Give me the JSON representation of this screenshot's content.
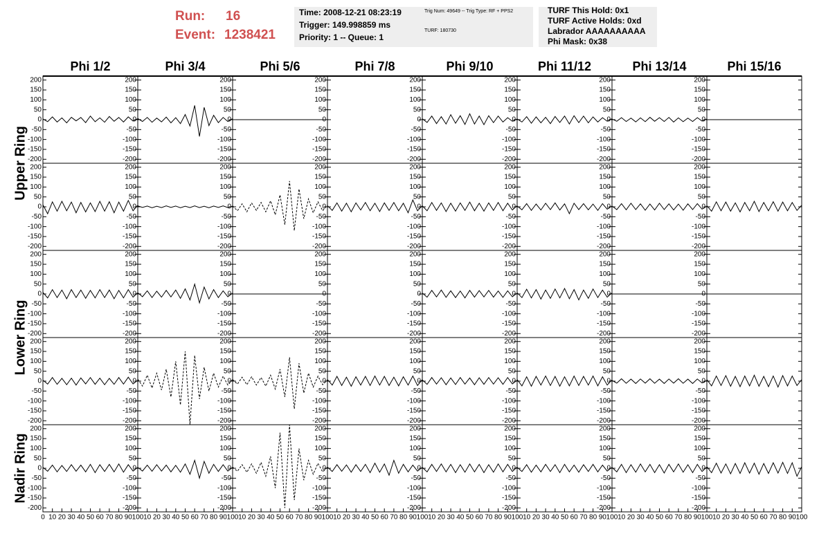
{
  "header": {
    "run_label": "Run:",
    "run": "16",
    "event_label": "Event:",
    "event": "1238421",
    "info_box": [
      "Time: 2008-12-21 08:23:19",
      "Trigger: 149.998859 ms",
      "Priority: 1 -- Queue: 1"
    ],
    "trig_box": [
      "Trig Num: 49649 -- Trig Type: RF + PPS2",
      "TURF: 180730"
    ],
    "turf_box": [
      "TURF This Hold: 0x1",
      "TURF Active Holds: 0xd",
      "Labrador AAAAAAAAAA",
      "Phi Mask: 0x38"
    ]
  },
  "chart_data": {
    "type": "line",
    "color": "#000000",
    "columns": [
      "Phi 1/2",
      "Phi 3/4",
      "Phi 5/6",
      "Phi 7/8",
      "Phi 9/10",
      "Phi 11/12",
      "Phi 13/14",
      "Phi 15/16"
    ],
    "ring_labels": [
      "Upper Ring",
      "Lower Ring",
      "Nadir Ring"
    ],
    "ylim": [
      -220,
      220
    ],
    "yticks": [
      -200,
      -150,
      -100,
      -50,
      0,
      50,
      100,
      150,
      200
    ],
    "xlim": [
      0,
      100
    ],
    "xticks": [
      0,
      10,
      20,
      30,
      40,
      50,
      60,
      70,
      80,
      90,
      100
    ],
    "x": [
      0,
      5,
      10,
      15,
      20,
      25,
      30,
      35,
      40,
      45,
      50,
      55,
      60,
      65,
      70,
      75,
      80,
      85,
      90,
      95,
      100
    ],
    "rows": [
      [
        {
          "values": [
            4,
            -10,
            14,
            -12,
            9,
            -16,
            12,
            -6,
            11,
            -15,
            18,
            -10,
            9,
            -13,
            16,
            -8,
            11,
            -12,
            14,
            -7,
            5
          ]
        },
        {
          "values": [
            6,
            -9,
            11,
            -13,
            8,
            -11,
            13,
            -16,
            10,
            -20,
            26,
            -32,
            72,
            -85,
            62,
            -30,
            22,
            -15,
            11,
            -9,
            5
          ]
        },
        {
          "values": [
            0,
            0,
            0,
            0,
            0,
            0,
            0,
            0,
            0,
            0,
            0,
            0,
            0,
            0,
            0,
            0,
            0,
            0,
            0,
            0,
            0
          ]
        },
        {
          "values": [
            null,
            null,
            null,
            null,
            null,
            null,
            null,
            null,
            null,
            null,
            null,
            null,
            null,
            null,
            null,
            null,
            null,
            null,
            null,
            null,
            null
          ]
        },
        {
          "values": [
            5,
            -14,
            18,
            -20,
            15,
            -22,
            25,
            -18,
            20,
            -24,
            30,
            -22,
            18,
            -25,
            20,
            -15,
            18,
            -12,
            10,
            -8,
            4
          ]
        },
        {
          "values": [
            4,
            -12,
            15,
            -18,
            14,
            -16,
            12,
            -20,
            16,
            -14,
            18,
            -22,
            20,
            -15,
            18,
            -16,
            14,
            -12,
            10,
            -8,
            5
          ]
        },
        {
          "values": [
            3,
            -8,
            10,
            -9,
            8,
            -11,
            9,
            -10,
            12,
            -8,
            10,
            -9,
            11,
            -12,
            9,
            -10,
            8,
            -9,
            10,
            -7,
            4
          ]
        },
        {
          "values": [
            0,
            0,
            0,
            0,
            0,
            0,
            0,
            0,
            0,
            0,
            0,
            0,
            0,
            0,
            0,
            0,
            0,
            0,
            0,
            0,
            0
          ]
        }
      ],
      [
        {
          "values": [
            10,
            -35,
            25,
            -22,
            28,
            -20,
            24,
            -30,
            22,
            -26,
            20,
            -24,
            28,
            -22,
            26,
            -30,
            24,
            -22,
            32,
            -20,
            8
          ]
        },
        {
          "values": [
            5,
            -3,
            4,
            -5,
            3,
            -4,
            5,
            -3,
            4,
            -5,
            3,
            -4,
            5,
            -4,
            3,
            -5,
            4,
            -3,
            5,
            -4,
            3
          ]
        },
        {
          "values": [
            5,
            -20,
            15,
            -25,
            20,
            -18,
            22,
            -25,
            30,
            -40,
            60,
            -90,
            130,
            -120,
            90,
            -60,
            40,
            -30,
            25,
            -20,
            10
          ],
          "dashed": true
        },
        {
          "values": [
            6,
            -18,
            20,
            -22,
            18,
            -25,
            20,
            -16,
            22,
            -20,
            18,
            -24,
            20,
            -18,
            22,
            -20,
            18,
            -30,
            35,
            -20,
            6
          ]
        },
        {
          "values": [
            5,
            -20,
            22,
            -18,
            20,
            -24,
            18,
            -22,
            20,
            -18,
            24,
            -20,
            18,
            -22,
            20,
            -18,
            22,
            -20,
            18,
            -16,
            6
          ]
        },
        {
          "values": [
            4,
            -15,
            16,
            -18,
            14,
            -16,
            18,
            -14,
            20,
            -16,
            15,
            -35,
            18,
            -14,
            16,
            -15,
            14,
            -18,
            16,
            -12,
            5
          ]
        },
        {
          "values": [
            4,
            -14,
            16,
            -15,
            18,
            -14,
            15,
            -17,
            14,
            -16,
            18,
            -14,
            15,
            -16,
            14,
            -17,
            15,
            -14,
            16,
            -12,
            4
          ]
        },
        {
          "values": [
            6,
            -22,
            25,
            -20,
            24,
            -22,
            20,
            -26,
            22,
            -20,
            28,
            -24,
            22,
            -20,
            26,
            -22,
            24,
            -20,
            22,
            -18,
            8
          ]
        }
      ],
      [
        {
          "values": [
            8,
            -20,
            22,
            -18,
            20,
            -24,
            22,
            -18,
            20,
            -22,
            18,
            -20,
            22,
            -18,
            20,
            -24,
            18,
            -20,
            22,
            -16,
            6
          ]
        },
        {
          "values": [
            6,
            -14,
            16,
            -18,
            14,
            -16,
            18,
            -15,
            20,
            -22,
            26,
            -30,
            50,
            -45,
            35,
            -25,
            22,
            -18,
            16,
            -14,
            5
          ]
        },
        {
          "values": [
            0,
            0,
            0,
            0,
            0,
            0,
            0,
            0,
            0,
            0,
            0,
            0,
            0,
            0,
            0,
            0,
            0,
            0,
            0,
            0,
            0
          ]
        },
        {
          "values": [
            null,
            null,
            null,
            null,
            null,
            null,
            null,
            null,
            null,
            null,
            null,
            null,
            null,
            null,
            null,
            null,
            null,
            null,
            null,
            null,
            null
          ]
        },
        {
          "values": [
            5,
            -16,
            18,
            -15,
            20,
            -17,
            16,
            -18,
            15,
            -20,
            18,
            -16,
            17,
            -15,
            18,
            -16,
            15,
            -17,
            16,
            -14,
            5
          ]
        },
        {
          "values": [
            6,
            -18,
            24,
            -20,
            22,
            -26,
            20,
            -22,
            25,
            -20,
            28,
            -24,
            22,
            -30,
            20,
            -22,
            25,
            -18,
            20,
            -16,
            6
          ]
        },
        {
          "values": [
            0,
            0,
            0,
            0,
            0,
            0,
            0,
            0,
            0,
            0,
            0,
            0,
            0,
            0,
            0,
            0,
            0,
            0,
            0,
            0,
            0
          ]
        },
        {
          "values": [
            0,
            0,
            0,
            0,
            0,
            0,
            0,
            0,
            0,
            0,
            0,
            0,
            0,
            0,
            0,
            0,
            0,
            0,
            0,
            0,
            0
          ]
        }
      ],
      [
        {
          "values": [
            5,
            -15,
            18,
            -16,
            14,
            -18,
            15,
            -20,
            16,
            -14,
            18,
            -16,
            15,
            -18,
            14,
            -16,
            18,
            -15,
            20,
            -14,
            5
          ]
        },
        {
          "values": [
            10,
            -25,
            30,
            -35,
            40,
            -45,
            60,
            -80,
            100,
            -120,
            150,
            -220,
            130,
            -90,
            70,
            -50,
            40,
            -30,
            25,
            -20,
            8
          ],
          "dashed": true
        },
        {
          "values": [
            8,
            -15,
            20,
            -18,
            22,
            -20,
            18,
            -25,
            30,
            -40,
            60,
            -80,
            120,
            -140,
            90,
            -60,
            40,
            -30,
            25,
            -18,
            6
          ],
          "dashed": true
        },
        {
          "values": [
            8,
            -20,
            24,
            -22,
            20,
            -26,
            22,
            -20,
            24,
            -22,
            26,
            -20,
            24,
            -22,
            20,
            -24,
            22,
            -20,
            26,
            -22,
            8
          ]
        },
        {
          "values": [
            6,
            -16,
            18,
            -15,
            17,
            -18,
            16,
            -17,
            18,
            -15,
            16,
            -18,
            17,
            -16,
            18,
            -15,
            17,
            -16,
            18,
            -14,
            5
          ]
        },
        {
          "values": [
            8,
            -24,
            22,
            -26,
            24,
            -20,
            26,
            -22,
            24,
            -26,
            22,
            -24,
            26,
            -22,
            24,
            -20,
            26,
            -24,
            22,
            -20,
            7
          ]
        },
        {
          "values": [
            4,
            -10,
            12,
            -11,
            10,
            -12,
            11,
            -10,
            12,
            -11,
            10,
            -12,
            11,
            -10,
            12,
            -11,
            10,
            -12,
            11,
            -9,
            4
          ]
        },
        {
          "values": [
            8,
            -24,
            26,
            -22,
            28,
            -26,
            24,
            -28,
            26,
            -24,
            30,
            -26,
            24,
            -28,
            26,
            -30,
            28,
            -24,
            26,
            -22,
            8
          ]
        }
      ],
      [
        {
          "values": [
            5,
            -15,
            16,
            -18,
            14,
            -16,
            18,
            -15,
            16,
            -18,
            20,
            -22,
            18,
            -16,
            20,
            -18,
            22,
            -20,
            18,
            -14,
            5
          ]
        },
        {
          "values": [
            5,
            -14,
            16,
            -15,
            18,
            -14,
            16,
            -18,
            15,
            -20,
            22,
            -30,
            40,
            -50,
            35,
            -25,
            20,
            -16,
            18,
            -14,
            5
          ]
        },
        {
          "values": [
            6,
            -15,
            18,
            -20,
            22,
            -25,
            30,
            -40,
            60,
            -100,
            180,
            -200,
            220,
            -160,
            100,
            -60,
            40,
            -30,
            25,
            -18,
            6
          ],
          "dashed": true
        },
        {
          "values": [
            6,
            -16,
            18,
            -15,
            17,
            -20,
            18,
            -16,
            20,
            -22,
            26,
            -20,
            22,
            -35,
            40,
            -25,
            20,
            -18,
            16,
            -14,
            5
          ]
        },
        {
          "values": [
            5,
            -18,
            20,
            -16,
            22,
            -18,
            20,
            -22,
            18,
            -20,
            22,
            -18,
            20,
            -22,
            18,
            -20,
            22,
            -18,
            20,
            -16,
            6
          ]
        },
        {
          "values": [
            5,
            -16,
            18,
            -20,
            16,
            -18,
            20,
            -16,
            18,
            -22,
            20,
            -18,
            16,
            -20,
            18,
            -16,
            20,
            -18,
            16,
            -14,
            5
          ]
        },
        {
          "values": [
            5,
            -18,
            20,
            -22,
            18,
            -20,
            22,
            -18,
            20,
            -22,
            18,
            -24,
            20,
            -18,
            22,
            -20,
            18,
            -22,
            20,
            -16,
            6
          ]
        },
        {
          "values": [
            8,
            -22,
            26,
            -24,
            22,
            -28,
            24,
            -26,
            28,
            -24,
            26,
            -30,
            24,
            -26,
            28,
            -24,
            30,
            -26,
            28,
            -40,
            8
          ]
        }
      ]
    ]
  }
}
